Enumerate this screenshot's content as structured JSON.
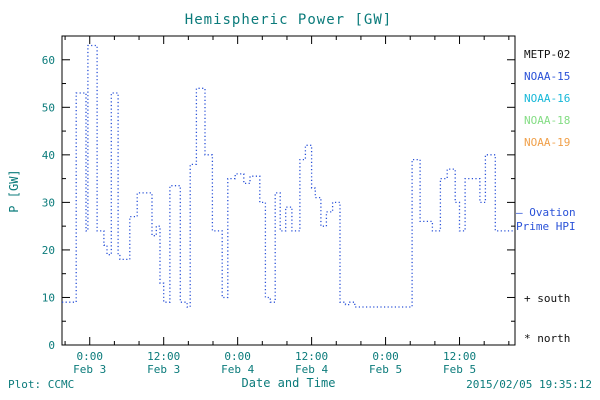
{
  "header": {
    "title": "Hemispheric Power [GW]"
  },
  "legend": {
    "satellites": [
      {
        "label": "METP-02",
        "color": "#111111"
      },
      {
        "label": "NOAA-15",
        "color": "#2a52d8"
      },
      {
        "label": "NOAA-16",
        "color": "#17b8d8"
      },
      {
        "label": "NOAA-18",
        "color": "#84dd84"
      },
      {
        "label": "NOAA-19",
        "color": "#f0a04a"
      }
    ],
    "ovation_line1": "– Ovation",
    "ovation_line2": "Prime HPI",
    "ovation_color": "#2a52d8",
    "south_label": "+ south",
    "north_label": "* north"
  },
  "footer": {
    "plot_label": "Plot: CCMC",
    "timestamp": "2015/02/05 19:35:12"
  },
  "chart_data": {
    "type": "line",
    "style": "step-after, dotted",
    "title": "Hemispheric Power [GW]",
    "xlabel": "Date and Time",
    "ylabel": "P [GW]",
    "x_unit": "hours relative to 2015 Feb 3 00:00 UT",
    "xlim": [
      -4.5,
      69
    ],
    "ylim": [
      0,
      65
    ],
    "grid": false,
    "legend_position": "right-outside",
    "yticks": [
      0,
      10,
      20,
      30,
      40,
      50,
      60
    ],
    "xticks": [
      {
        "hour": 0,
        "time": "0:00",
        "date": "Feb 3"
      },
      {
        "hour": 12,
        "time": "12:00",
        "date": "Feb 3"
      },
      {
        "hour": 24,
        "time": "0:00",
        "date": "Feb 4"
      },
      {
        "hour": 36,
        "time": "12:00",
        "date": "Feb 4"
      },
      {
        "hour": 48,
        "time": "0:00",
        "date": "Feb 5"
      },
      {
        "hour": 60,
        "time": "12:00",
        "date": "Feb 5"
      }
    ],
    "series": [
      {
        "name": "NOAA-15 hemispheric power (values estimated from plot)",
        "color": "#2a52d8",
        "points_hour_gw": [
          [
            -4.5,
            9
          ],
          [
            -2.2,
            53
          ],
          [
            -0.6,
            24
          ],
          [
            -0.3,
            63
          ],
          [
            1.2,
            24
          ],
          [
            2.3,
            21
          ],
          [
            2.8,
            19
          ],
          [
            3.5,
            53
          ],
          [
            4.6,
            19
          ],
          [
            4.9,
            18
          ],
          [
            6.5,
            27
          ],
          [
            7.7,
            32
          ],
          [
            10.1,
            23
          ],
          [
            10.8,
            25
          ],
          [
            11.4,
            13
          ],
          [
            12.0,
            9
          ],
          [
            13.0,
            33.5
          ],
          [
            14.7,
            9
          ],
          [
            15.8,
            8
          ],
          [
            16.3,
            38
          ],
          [
            17.3,
            54
          ],
          [
            18.7,
            40
          ],
          [
            19.9,
            24
          ],
          [
            21.5,
            10
          ],
          [
            22.4,
            35
          ],
          [
            23.6,
            36
          ],
          [
            25.0,
            34
          ],
          [
            26.0,
            35.5
          ],
          [
            27.6,
            30
          ],
          [
            28.5,
            10
          ],
          [
            29.3,
            9
          ],
          [
            30.1,
            32
          ],
          [
            30.9,
            24
          ],
          [
            31.8,
            29
          ],
          [
            32.8,
            24
          ],
          [
            34.1,
            39
          ],
          [
            35.0,
            42
          ],
          [
            36.0,
            33
          ],
          [
            36.6,
            31
          ],
          [
            37.5,
            25
          ],
          [
            38.4,
            28
          ],
          [
            39.4,
            30
          ],
          [
            40.6,
            9
          ],
          [
            41.5,
            8.5
          ],
          [
            42.2,
            9
          ],
          [
            43.0,
            8
          ],
          [
            52.3,
            39
          ],
          [
            53.6,
            26
          ],
          [
            55.6,
            24
          ],
          [
            56.9,
            35
          ],
          [
            58.0,
            37
          ],
          [
            59.3,
            30
          ],
          [
            60.0,
            24
          ],
          [
            60.9,
            35
          ],
          [
            63.3,
            30
          ],
          [
            64.2,
            40
          ],
          [
            65.8,
            24
          ],
          [
            69.0,
            24
          ]
        ]
      }
    ]
  }
}
